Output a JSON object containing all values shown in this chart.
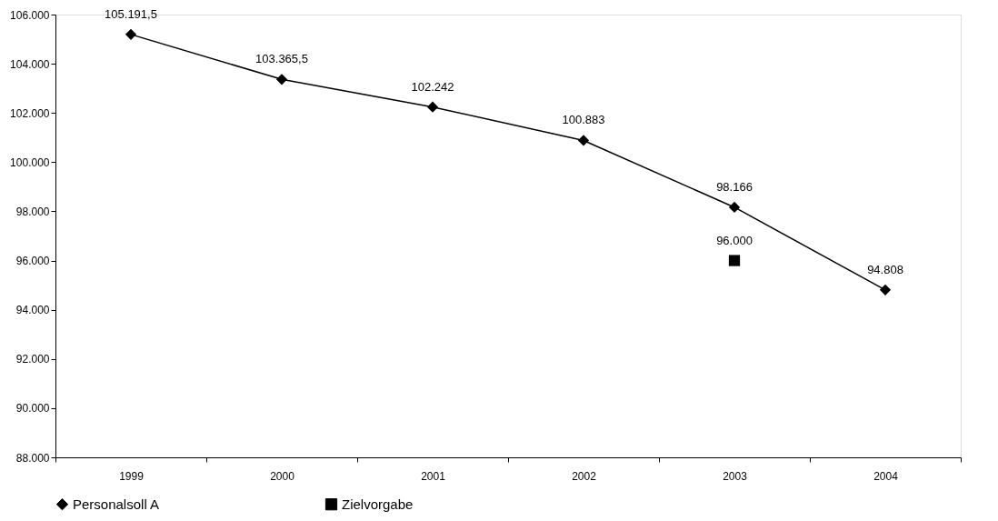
{
  "chart_data": {
    "type": "line",
    "categories": [
      "1999",
      "2000",
      "2001",
      "2002",
      "2003",
      "2004"
    ],
    "series": [
      {
        "name": "Personalsoll A",
        "type": "line",
        "marker": "diamond",
        "color": "#000000",
        "values": [
          105191.5,
          103365.5,
          102242,
          100883,
          98166,
          94808
        ],
        "value_labels": [
          "105.191,5",
          "103.365,5",
          "102.242",
          "100.883",
          "98.166",
          "94.808"
        ]
      },
      {
        "name": "Zielvorgabe",
        "type": "scatter",
        "marker": "square",
        "color": "#000000",
        "values": [
          null,
          null,
          null,
          null,
          96000,
          null
        ],
        "value_labels": [
          null,
          null,
          null,
          null,
          "96.000",
          null
        ]
      }
    ],
    "ylim": [
      88000,
      106000
    ],
    "yticks": [
      {
        "value": 88000,
        "label": "88.000"
      },
      {
        "value": 90000,
        "label": "90.000"
      },
      {
        "value": 92000,
        "label": "92.000"
      },
      {
        "value": 94000,
        "label": "94.000"
      },
      {
        "value": 96000,
        "label": "96.000"
      },
      {
        "value": 98000,
        "label": "98.000"
      },
      {
        "value": 100000,
        "label": "100.000"
      },
      {
        "value": 102000,
        "label": "102.000"
      },
      {
        "value": 104000,
        "label": "104.000"
      },
      {
        "value": 106000,
        "label": "106.000"
      }
    ],
    "grid": false,
    "legend": "bottom"
  }
}
